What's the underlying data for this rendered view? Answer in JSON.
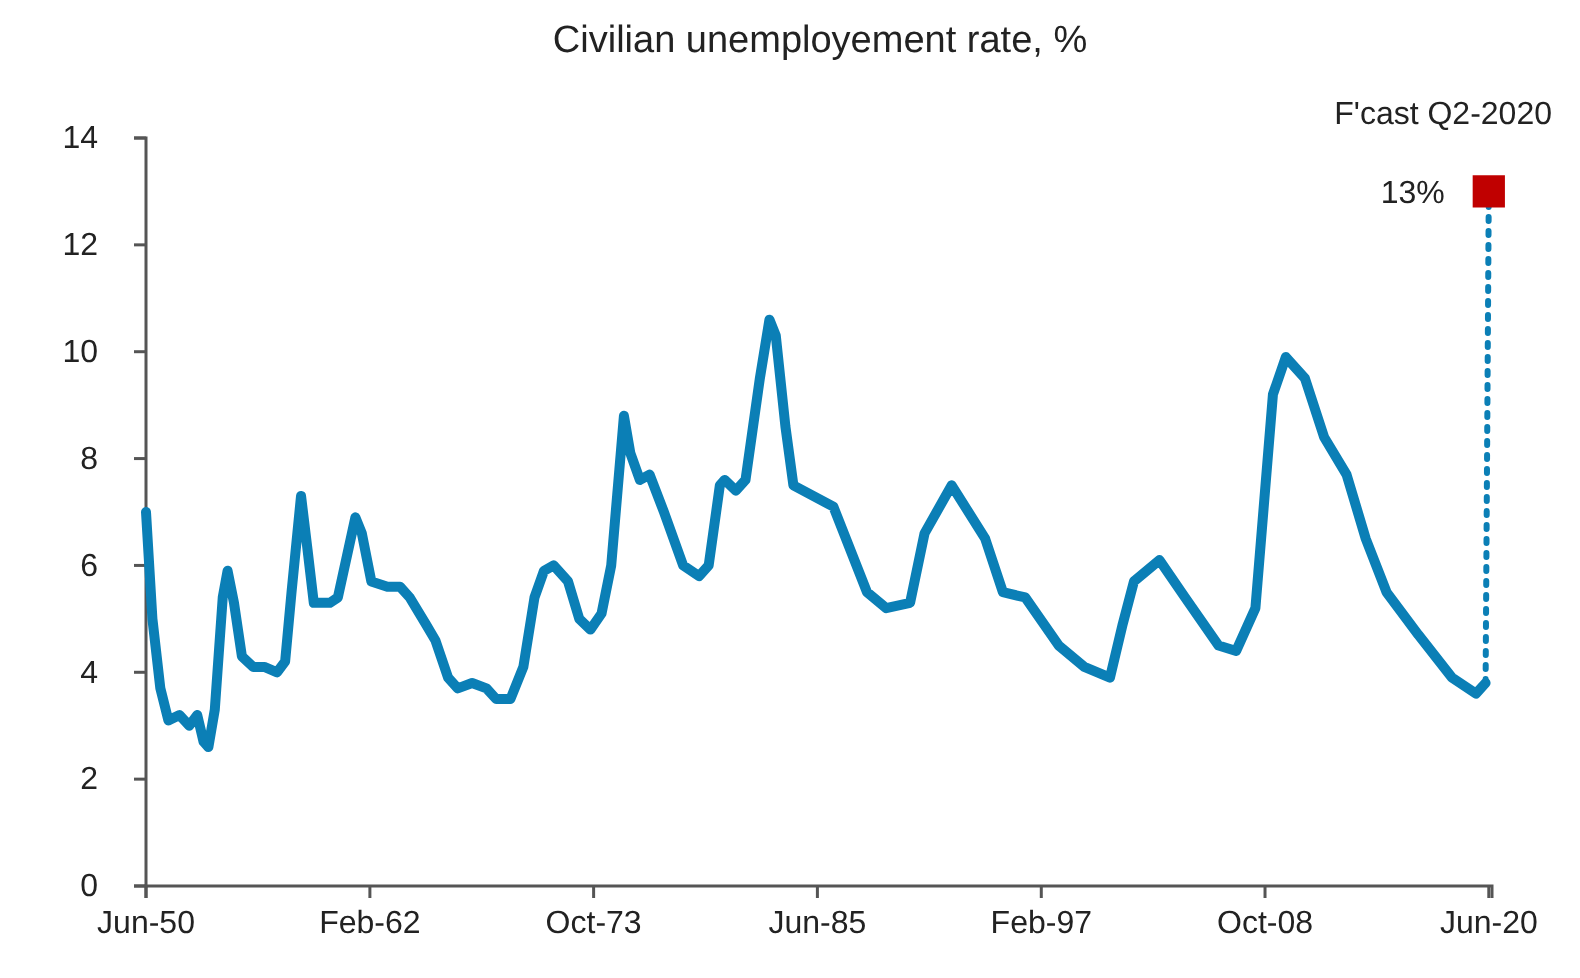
{
  "chart_data": {
    "type": "line",
    "title": "Civilian unemployement rate, %",
    "annotations": [
      "F'cast Q2-2020"
    ],
    "xlim": [
      "1950-06",
      "2020-08"
    ],
    "xticks": [
      {
        "value": "1950-06",
        "label": "Jun-50"
      },
      {
        "value": "1962-02",
        "label": "Feb-62"
      },
      {
        "value": "1973-10",
        "label": "Oct-73"
      },
      {
        "value": "1985-06",
        "label": "Jun-85"
      },
      {
        "value": "1997-02",
        "label": "Feb-97"
      },
      {
        "value": "2008-10",
        "label": "Oct-08"
      },
      {
        "value": "2020-06",
        "label": "Jun-20"
      }
    ],
    "ylim": [
      0,
      14
    ],
    "yticks": [
      0,
      2,
      4,
      6,
      8,
      10,
      12,
      14
    ],
    "grid": false,
    "series": [
      {
        "color": "#0b7fb6",
        "line_style": "solid",
        "marker": "none",
        "x": [
          "1950-06",
          "1950-10",
          "1951-03",
          "1951-08",
          "1952-03",
          "1952-09",
          "1953-02",
          "1953-06",
          "1953-09",
          "1954-01",
          "1954-06",
          "1954-09",
          "1955-01",
          "1955-06",
          "1956-01",
          "1956-08",
          "1957-04",
          "1957-09",
          "1958-01",
          "1958-07",
          "1958-11",
          "1959-03",
          "1960-01",
          "1960-06",
          "1961-05",
          "1961-09",
          "1962-03",
          "1963-01",
          "1963-09",
          "1964-03",
          "1965-01",
          "1965-07",
          "1966-03",
          "1966-09",
          "1967-06",
          "1968-03",
          "1968-09",
          "1969-06",
          "1970-02",
          "1970-09",
          "1971-03",
          "1971-09",
          "1972-06",
          "1973-01",
          "1973-08",
          "1974-03",
          "1974-09",
          "1975-05",
          "1975-09",
          "1976-03",
          "1976-09",
          "1977-06",
          "1978-06",
          "1979-04",
          "1979-10",
          "1980-05",
          "1980-08",
          "1981-03",
          "1981-09",
          "1982-06",
          "1982-12",
          "1983-04",
          "1983-10",
          "1984-03",
          "1986-04",
          "1988-01",
          "1989-01",
          "1990-04",
          "1991-01",
          "1992-06",
          "1994-03",
          "1995-02",
          "1996-04",
          "1998-01",
          "1999-05",
          "2000-09",
          "2001-05",
          "2001-12",
          "2003-04",
          "2004-08",
          "2006-05",
          "2007-04",
          "2008-04",
          "2009-03",
          "2009-11",
          "2010-11",
          "2011-11",
          "2013-01",
          "2014-01",
          "2015-02",
          "2016-10",
          "2018-07",
          "2019-10",
          "2020-04"
        ],
        "values": [
          7.0,
          5.0,
          3.7,
          3.1,
          3.2,
          3.0,
          3.2,
          2.7,
          2.6,
          3.3,
          5.4,
          5.9,
          5.3,
          4.3,
          4.1,
          4.1,
          4.0,
          4.2,
          5.5,
          7.3,
          6.3,
          5.3,
          5.3,
          5.4,
          6.9,
          6.6,
          5.7,
          5.6,
          5.6,
          5.4,
          4.9,
          4.6,
          3.9,
          3.7,
          3.8,
          3.7,
          3.5,
          3.5,
          4.1,
          5.4,
          5.9,
          6.0,
          5.7,
          5.0,
          4.8,
          5.1,
          6.0,
          8.8,
          8.1,
          7.6,
          7.7,
          7.0,
          6.0,
          5.8,
          6.0,
          7.5,
          7.6,
          7.4,
          7.6,
          9.5,
          10.6,
          10.3,
          8.6,
          7.5,
          7.1,
          5.5,
          5.2,
          5.3,
          6.6,
          7.5,
          6.5,
          5.5,
          5.4,
          4.5,
          4.1,
          3.9,
          4.9,
          5.7,
          6.1,
          5.4,
          4.5,
          4.4,
          5.2,
          9.2,
          9.9,
          9.5,
          8.4,
          7.7,
          6.5,
          5.5,
          4.7,
          3.9,
          3.6,
          3.8
        ]
      },
      {
        "type": "line",
        "color": "#0b7fb6",
        "line_style": "dotted",
        "marker": "none",
        "x": [
          "2020-04",
          "2020-06"
        ],
        "values": [
          3.8,
          13
        ]
      },
      {
        "type": "scatter",
        "color": "#c00000",
        "marker": "square",
        "x": [
          "2020-06"
        ],
        "values": [
          13
        ],
        "value_labels": [
          "13%"
        ]
      }
    ]
  }
}
